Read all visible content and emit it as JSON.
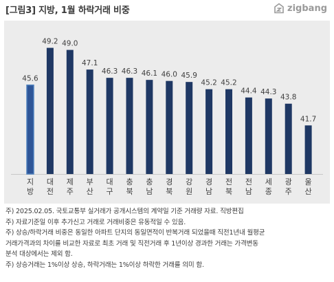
{
  "header": {
    "title": "[그림3] 지방, 1월 하락거래 비중",
    "logo_text": "zigbang",
    "logo_icon": "zigbang-logo-icon"
  },
  "colors": {
    "bar": "#1f3864",
    "highlight_bar": "#2e5597",
    "highlight_border": "#4f81bd",
    "panel_background": "#ececec"
  },
  "chart_data": {
    "type": "bar",
    "categories": [
      "지방",
      "대전",
      "제주",
      "부산",
      "대구",
      "충북",
      "충남",
      "경북",
      "강원",
      "경남",
      "전북",
      "전남",
      "세종",
      "광주",
      "울산"
    ],
    "tick_labels": [
      [
        "지",
        "방"
      ],
      [
        "대",
        "전"
      ],
      [
        "제",
        "주"
      ],
      [
        "부",
        "산"
      ],
      [
        "대",
        "구"
      ],
      [
        "충",
        "북"
      ],
      [
        "충",
        "남"
      ],
      [
        "경",
        "북"
      ],
      [
        "강",
        "원"
      ],
      [
        "경",
        "남"
      ],
      [
        "전",
        "북"
      ],
      [
        "전",
        "남"
      ],
      [
        "세",
        "종"
      ],
      [
        "광",
        "주"
      ],
      [
        "울",
        "산"
      ]
    ],
    "values": [
      45.6,
      49.2,
      49.0,
      47.1,
      46.3,
      46.3,
      46.1,
      46.0,
      45.9,
      45.2,
      45.2,
      44.4,
      44.3,
      43.8,
      41.7
    ],
    "value_labels": [
      "45.6",
      "49.2",
      "49.0",
      "47.1",
      "46.3",
      "46.3",
      "46.1",
      "46.0",
      "45.9",
      "45.2",
      "45.2",
      "44.4",
      "44.3",
      "43.8",
      "41.7"
    ],
    "highlight_category": "지방",
    "ylim": [
      37,
      50.5
    ],
    "grid": false,
    "legend": "none"
  },
  "notes": [
    "주) 2025.02.05. 국토교통부 실거래가 공개시스템의 계약일 기준 거래량  자료. 직방편집",
    "주) 자료기준일 이후 추가신고 거래로 거래비중은 유동적일 수 있음.",
    "주) 상승/하락거래 비중은 동일한 아파트 단지의 동일면적이 반복거래 되었을때 직전1년내 월평균",
    "거래가격과의 차이를 비교한 자료로 최초 거래 및 직전거래 후 1년이상 경과한 거래는 가격변동",
    "분석 대상에서는 제외 함.",
    "주) 상승거래는 1%이상 상승, 하락거래는 1%이상 하락한 거래를 의미 함."
  ]
}
